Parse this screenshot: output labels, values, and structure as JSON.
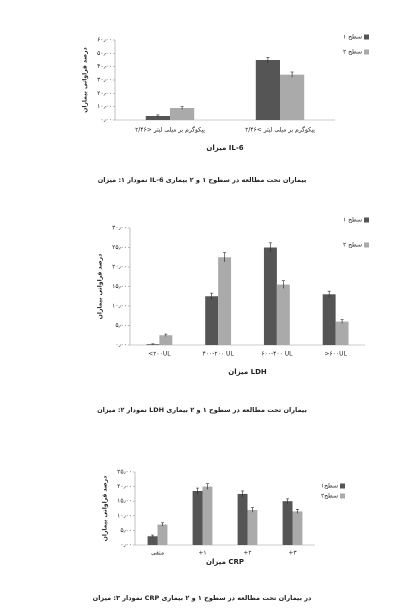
{
  "chart_data": [
    {
      "type": "bar",
      "caption": "نمودار ۱: میزان IL-6 بیماران تحت مطالعه در سطوح ۱ و ۲ بیماری",
      "xlabel": "میزان IL-6",
      "ylabel": "درصد فراوانی بیماران",
      "categories": [
        "۲/۴۶> پیکوگرم بر میلی لیتر",
        "۲/۴۶< پیکوگرم بر میلی لیتر"
      ],
      "series": [
        {
          "name": "سطح ۱",
          "color": "#555555",
          "values": [
            3,
            45
          ],
          "errors": [
            0.8,
            2
          ]
        },
        {
          "name": "سطح ۲",
          "color": "#aaaaaa",
          "values": [
            9,
            34
          ],
          "errors": [
            1,
            2
          ]
        }
      ],
      "ylim": [
        0,
        60
      ],
      "yticks": [
        {
          "value": 0,
          "label": "۰٫۰۰"
        },
        {
          "value": 10,
          "label": "۱۰٫۰۰"
        },
        {
          "value": 20,
          "label": "۲۰٫۰۰"
        },
        {
          "value": 30,
          "label": "۳۰٫۰۰"
        },
        {
          "value": 40,
          "label": "۴۰٫۰۰"
        },
        {
          "value": 50,
          "label": "۵۰٫۰۰"
        },
        {
          "value": 60,
          "label": "۶۰٫۰۰"
        }
      ],
      "grid": false
    },
    {
      "type": "bar",
      "caption": "نمودار ۲: میزان LDH بیماران تحت مطالعه در سطوح ۱ و ۲ بیماری",
      "xlabel": "میزان LDH",
      "ylabel": "درصد فراوانی بیماران",
      "categories": [
        "<۲۰۰UL",
        "۴۰۰-۲۰۰ UL",
        "۶۰۰-۴۰۰ UL",
        ">۶۰۰UL"
      ],
      "series": [
        {
          "name": "سطح ۱",
          "color": "#555555",
          "values": [
            0.2,
            12.5,
            25,
            13
          ],
          "errors": [
            0.1,
            0.8,
            1.2,
            0.8
          ]
        },
        {
          "name": "سطح ۲",
          "color": "#aaaaaa",
          "values": [
            2.5,
            22.5,
            15.5,
            6
          ],
          "errors": [
            0.3,
            1.2,
            1,
            0.5
          ]
        }
      ],
      "ylim": [
        0,
        30
      ],
      "yticks": [
        {
          "value": 0,
          "label": "۰٫۰۰"
        },
        {
          "value": 5,
          "label": "۵٫۰۰"
        },
        {
          "value": 10,
          "label": "۱۰٫۰۰"
        },
        {
          "value": 15,
          "label": "۱۵٫۰۰"
        },
        {
          "value": 20,
          "label": "۲۰٫۰۰"
        },
        {
          "value": 25,
          "label": "۲۵٫۰۰"
        },
        {
          "value": 30,
          "label": "۳۰٫۰۰"
        }
      ],
      "grid": false
    },
    {
      "type": "bar",
      "caption": "نمودار ۳: میزان CRP در بیماران تحت مطالعه در سطوح ۱ و ۲ بیماری",
      "xlabel": "میزان CRP",
      "ylabel": "درصد فراوانی بیماران",
      "categories": [
        "منفی",
        "+۱",
        "+۲",
        "+۳"
      ],
      "series": [
        {
          "name": "سطح۱",
          "color": "#555555",
          "values": [
            3,
            18.5,
            17.5,
            15
          ],
          "errors": [
            0.4,
            1,
            1,
            0.8
          ]
        },
        {
          "name": "سطح۲",
          "color": "#aaaaaa",
          "values": [
            7,
            20,
            12,
            11.5
          ],
          "errors": [
            0.6,
            1,
            0.8,
            0.7
          ]
        }
      ],
      "ylim": [
        0,
        25
      ],
      "yticks": [
        {
          "value": 0,
          "label": "۰٫۰۰"
        },
        {
          "value": 5,
          "label": "۵٫۰۰"
        },
        {
          "value": 10,
          "label": "۱۰٫۰۰"
        },
        {
          "value": 15,
          "label": "۱۵٫۰۰"
        },
        {
          "value": 20,
          "label": "۲۰٫۰۰"
        },
        {
          "value": 25,
          "label": "۲۵٫۰۰"
        }
      ],
      "grid": false
    }
  ]
}
